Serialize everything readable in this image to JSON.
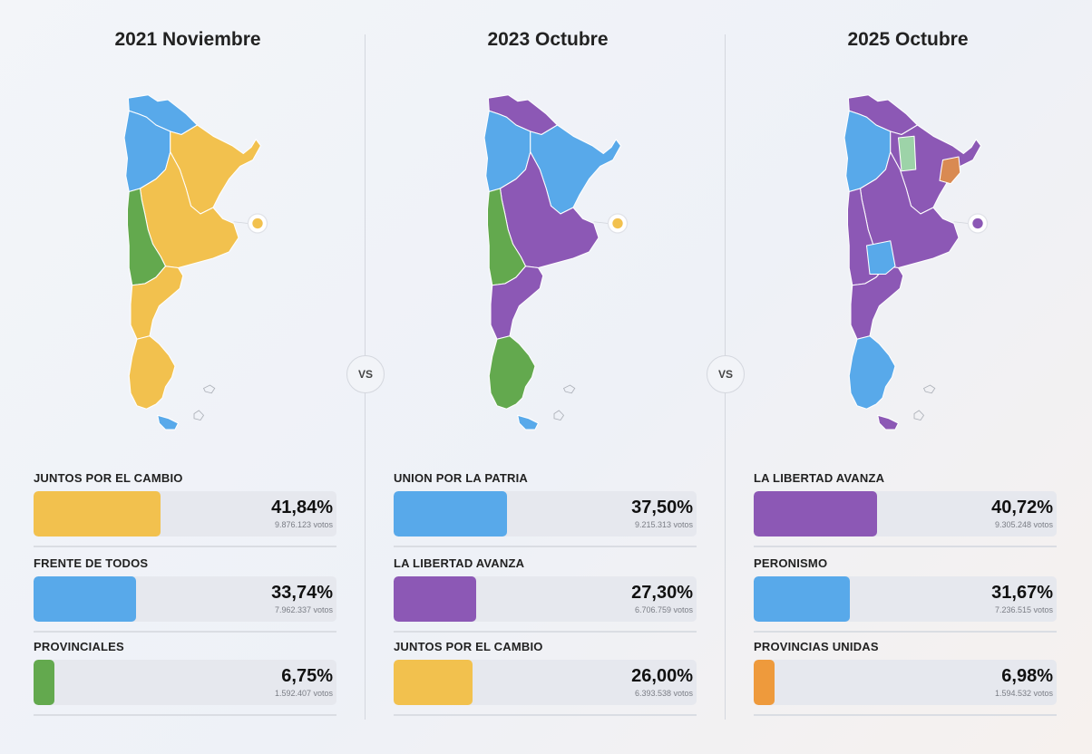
{
  "colors": {
    "yellow": "#f2c14e",
    "blue": "#58a9ea",
    "green": "#63a94e",
    "purple": "#8c58b5",
    "light_green": "#9dd3a8",
    "brown_orange": "#d98a52",
    "orange": "#ee9a3c"
  },
  "separator": "VS",
  "elections": [
    {
      "title": "2021 Noviembre",
      "map_colors": {
        "north": "blue",
        "northwest": "blue",
        "northeast": "yellow",
        "center": "yellow",
        "cuyo": "green",
        "patagonia_north": "yellow",
        "patagonia_south": "yellow",
        "tierra_del_fuego": "blue",
        "caba": "yellow"
      },
      "results": [
        {
          "party": "JUNTOS POR EL CAMBIO",
          "percent": "41,84%",
          "value": 41.84,
          "votes": "9.876.123 votos",
          "color": "yellow"
        },
        {
          "party": "FRENTE DE TODOS",
          "percent": "33,74%",
          "value": 33.74,
          "votes": "7.962.337 votos",
          "color": "blue"
        },
        {
          "party": "PROVINCIALES",
          "percent": "6,75%",
          "value": 6.75,
          "votes": "1.592.407 votos",
          "color": "green"
        }
      ]
    },
    {
      "title": "2023 Octubre",
      "map_colors": {
        "north": "purple",
        "northwest": "blue",
        "northeast": "blue",
        "center": "purple",
        "cuyo": "green",
        "patagonia_north": "purple",
        "patagonia_south": "green",
        "tierra_del_fuego": "blue",
        "caba": "yellow"
      },
      "results": [
        {
          "party": "UNION POR LA PATRIA",
          "percent": "37,50%",
          "value": 37.5,
          "votes": "9.215.313 votos",
          "color": "blue"
        },
        {
          "party": "LA LIBERTAD AVANZA",
          "percent": "27,30%",
          "value": 27.3,
          "votes": "6.706.759 votos",
          "color": "purple"
        },
        {
          "party": "JUNTOS POR EL CAMBIO",
          "percent": "26,00%",
          "value": 26.0,
          "votes": "6.393.538 votos",
          "color": "yellow"
        }
      ]
    },
    {
      "title": "2025 Octubre",
      "map_colors": {
        "north": "purple",
        "northwest": "blue",
        "northeast": "purple",
        "center": "purple",
        "cuyo": "purple",
        "patagonia_north": "purple",
        "patagonia_south": "blue",
        "tierra_del_fuego": "purple",
        "caba": "purple",
        "santiago": "light_green",
        "corrientes": "brown_orange",
        "la_pampa": "blue"
      },
      "results": [
        {
          "party": "LA LIBERTAD AVANZA",
          "percent": "40,72%",
          "value": 40.72,
          "votes": "9.305.248 votos",
          "color": "purple"
        },
        {
          "party": "PERONISMO",
          "percent": "31,67%",
          "value": 31.67,
          "votes": "7.236.515 votos",
          "color": "blue"
        },
        {
          "party": "PROVINCIAS UNIDAS",
          "percent": "6,98%",
          "value": 6.98,
          "votes": "1.594.532 votos",
          "color": "orange"
        }
      ]
    }
  ]
}
